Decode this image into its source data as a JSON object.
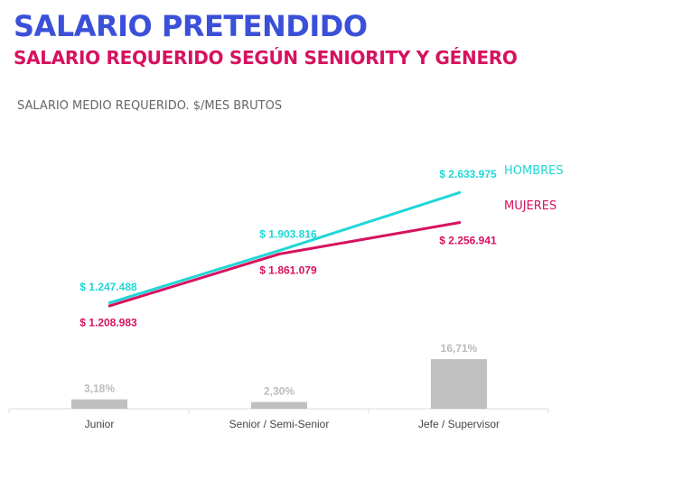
{
  "title": "SALARIO PRETENDIDO",
  "subtitle": "SALARIO REQUERIDO SEGÚN SENIORITY Y GÉNERO",
  "caption": "SALARIO MEDIO REQUERIDO. $/MES BRUTOS",
  "chart_data": [
    {
      "type": "line",
      "categories": [
        "Junior",
        "Senior / Semi-Senior",
        "Jefe / Supervisor"
      ],
      "series": [
        {
          "name": "HOMBRES",
          "color": "#1fd6d6",
          "values": [
            1247488,
            1903816,
            2633975
          ],
          "labels": [
            "$ 1.247.488",
            "$ 1.903.816",
            "$ 2.633.975"
          ]
        },
        {
          "name": "MUJERES",
          "color": "#d6125f",
          "values": [
            1208983,
            1861079,
            2256941
          ],
          "labels": [
            "$ 1.208.983",
            "$ 1.861.079",
            "$ 2.256.941"
          ]
        }
      ]
    },
    {
      "type": "bar",
      "categories": [
        "Junior",
        "Senior / Semi-Senior",
        "Jefe / Supervisor"
      ],
      "values": [
        3.18,
        2.3,
        16.71
      ],
      "labels": [
        "3,18%",
        "2,30%",
        "16,71%"
      ],
      "color": "#c0c0c0"
    }
  ]
}
